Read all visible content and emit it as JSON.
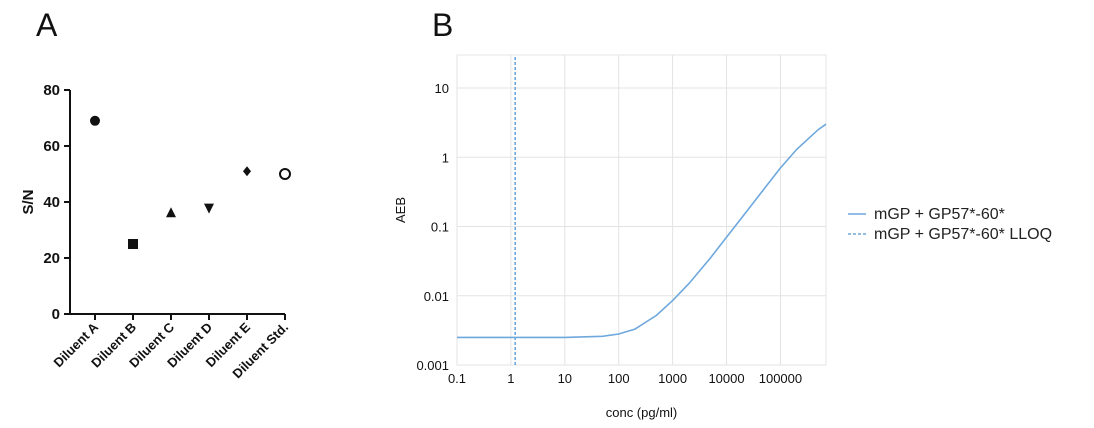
{
  "panel_a": {
    "letter": "A"
  },
  "panel_b": {
    "letter": "B"
  },
  "chart_data": [
    {
      "type": "scatter",
      "ylabel": "S/N",
      "xlabel": "",
      "ylim": [
        0,
        80
      ],
      "yticks": [
        "0",
        "20",
        "40",
        "60",
        "80"
      ],
      "categories": [
        "Diluent A",
        "Diluent B",
        "Diluent C",
        "Diluent D",
        "Diluent E",
        "Diluent Std."
      ],
      "values": [
        69,
        25,
        36,
        38,
        51,
        50
      ],
      "markers": [
        "circle",
        "square",
        "triangle-up",
        "triangle-down",
        "diamond",
        "circle-open"
      ],
      "grid": false
    },
    {
      "type": "line",
      "ylabel": "AEB",
      "xlabel": "conc (pg/ml)",
      "xscale": "log",
      "yscale": "log",
      "xlim": [
        0.1,
        700000
      ],
      "ylim": [
        0.001,
        30
      ],
      "xticks": [
        "0.1",
        "1",
        "10",
        "100",
        "1000",
        "10000",
        "100000"
      ],
      "yticks": [
        "0.001",
        "0.01",
        "0.1",
        "1",
        "10"
      ],
      "grid": true,
      "legend_position": "right",
      "series": [
        {
          "name": "mGP + GP57*-60*",
          "style": "solid",
          "color": "#6fa8dc",
          "x": [
            0.1,
            1,
            10,
            50,
            100,
            200,
            500,
            1000,
            2000,
            5000,
            10000,
            20000,
            50000,
            100000,
            200000,
            500000,
            700000
          ],
          "y": [
            0.0025,
            0.0025,
            0.0025,
            0.0026,
            0.0028,
            0.0033,
            0.0052,
            0.0085,
            0.015,
            0.035,
            0.07,
            0.14,
            0.35,
            0.7,
            1.3,
            2.5,
            3.0
          ]
        },
        {
          "name": "mGP + GP57*-60* LLOQ",
          "style": "dashed",
          "color": "#6fa8dc",
          "x": [
            1.2,
            1.2
          ],
          "y": [
            0.001,
            30
          ]
        }
      ]
    }
  ]
}
